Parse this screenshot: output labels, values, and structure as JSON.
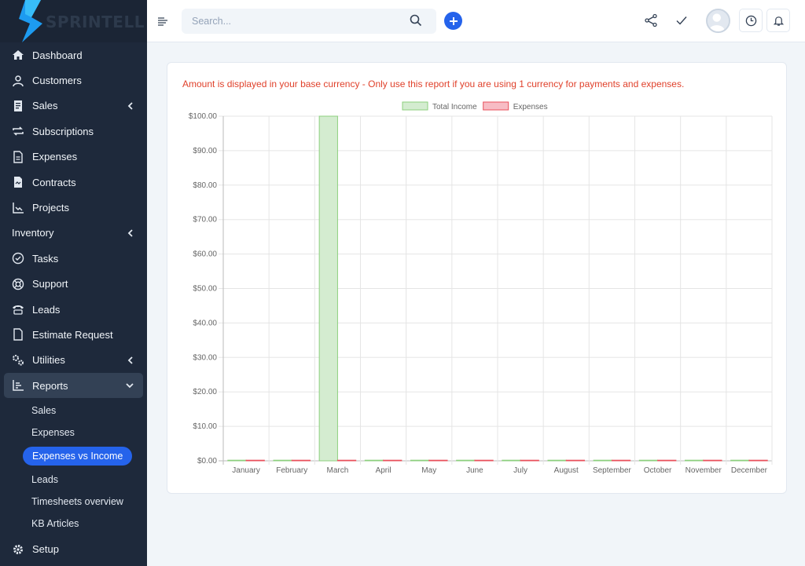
{
  "brand": {
    "name": "SPRINTELL"
  },
  "sidebar": {
    "items": [
      {
        "label": "Dashboard",
        "icon": "home-icon"
      },
      {
        "label": "Customers",
        "icon": "user-icon"
      },
      {
        "label": "Sales",
        "icon": "receipt-icon",
        "expandable": true
      },
      {
        "label": "Subscriptions",
        "icon": "repeat-icon"
      },
      {
        "label": "Expenses",
        "icon": "document-icon"
      },
      {
        "label": "Contracts",
        "icon": "contract-icon"
      },
      {
        "label": "Projects",
        "icon": "chart-line-icon"
      },
      {
        "label": "Inventory",
        "icon": "",
        "expandable": true
      },
      {
        "label": "Tasks",
        "icon": "check-circle-icon"
      },
      {
        "label": "Support",
        "icon": "lifebuoy-icon"
      },
      {
        "label": "Leads",
        "icon": "phone-icon"
      },
      {
        "label": "Estimate Request",
        "icon": "file-icon"
      },
      {
        "label": "Utilities",
        "icon": "cogs-icon",
        "expandable": true
      },
      {
        "label": "Reports",
        "icon": "bar-chart-icon",
        "expanded": true
      }
    ],
    "reports_sub": [
      {
        "label": "Sales"
      },
      {
        "label": "Expenses"
      },
      {
        "label": "Expenses vs Income",
        "current": true
      },
      {
        "label": "Leads"
      },
      {
        "label": "Timesheets overview"
      },
      {
        "label": "KB Articles"
      }
    ],
    "setup": {
      "label": "Setup",
      "icon": "gear-icon"
    }
  },
  "header": {
    "search_placeholder": "Search..."
  },
  "report": {
    "notice": "Amount is displayed in your base currency - Only use this report if you are using 1 currency for payments and expenses."
  },
  "chart_data": {
    "type": "bar",
    "categories": [
      "January",
      "February",
      "March",
      "April",
      "May",
      "June",
      "July",
      "August",
      "September",
      "October",
      "November",
      "December"
    ],
    "series": [
      {
        "name": "Total Income",
        "values": [
          0,
          0,
          100,
          0,
          0,
          0,
          0,
          0,
          0,
          0,
          0,
          0
        ],
        "fill": "#d4ecd0",
        "stroke": "#8ccf7e"
      },
      {
        "name": "Expenses",
        "values": [
          0,
          0,
          0,
          0,
          0,
          0,
          0,
          0,
          0,
          0,
          0,
          0
        ],
        "fill": "#f7bcc4",
        "stroke": "#e8505b"
      }
    ],
    "ylim": [
      0,
      100
    ],
    "yticks": [
      "$0.00",
      "$10.00",
      "$20.00",
      "$30.00",
      "$40.00",
      "$50.00",
      "$60.00",
      "$70.00",
      "$80.00",
      "$90.00",
      "$100.00"
    ],
    "legend": "top-center",
    "grid": true
  }
}
